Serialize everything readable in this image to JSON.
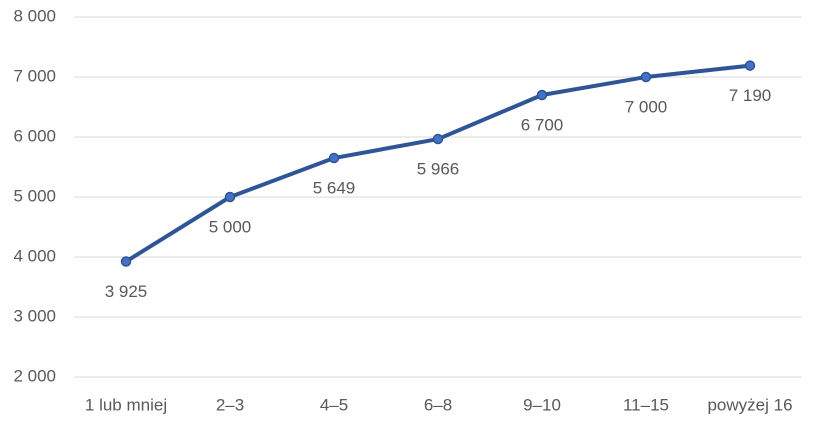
{
  "chart_data": {
    "type": "line",
    "categories": [
      "1 lub mniej",
      "2–3",
      "4–5",
      "6–8",
      "9–10",
      "11–15",
      "powyżej 16"
    ],
    "series": [
      {
        "name": null,
        "color": "#2f5597",
        "values": [
          3925,
          5000,
          5649,
          5966,
          6700,
          7000,
          7190
        ],
        "value_labels": [
          "3 925",
          "5 000",
          "5 649",
          "5 966",
          "6 700",
          "7 000",
          "7 190"
        ]
      }
    ],
    "ylim": [
      2000,
      8000
    ],
    "yticks": [
      {
        "value": 2000,
        "label": "2 000"
      },
      {
        "value": 3000,
        "label": "3 000"
      },
      {
        "value": 4000,
        "label": "4 000"
      },
      {
        "value": 5000,
        "label": "5 000"
      },
      {
        "value": 6000,
        "label": "6 000"
      },
      {
        "value": 7000,
        "label": "7 000"
      },
      {
        "value": 8000,
        "label": "8 000"
      }
    ],
    "grid": true
  }
}
